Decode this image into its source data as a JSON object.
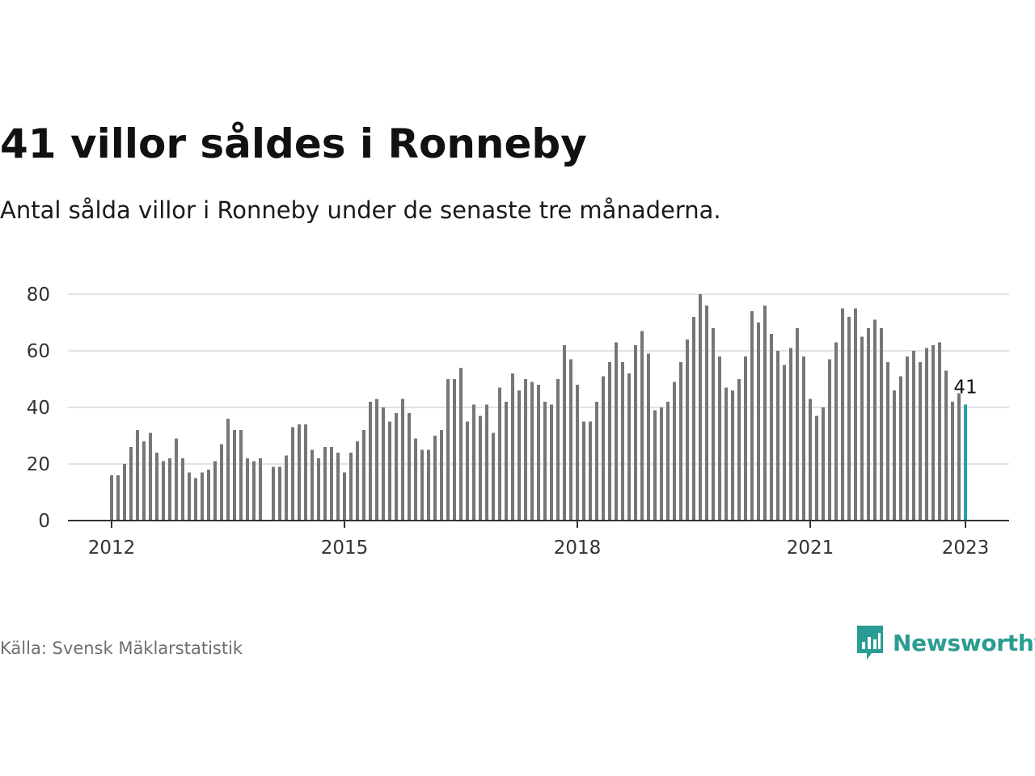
{
  "title": "41 villor såldes i Ronneby",
  "subtitle": "Antal sålda villor i Ronneby under de senaste tre månaderna.",
  "source": "Källa: Svensk Mäklarstatistik",
  "brand": {
    "name": "Newsworthy",
    "color": "#2a9c93",
    "icon": "newsworthy-logo-icon"
  },
  "chart_data": {
    "type": "bar",
    "title": "",
    "xlabel": "",
    "ylabel": "",
    "ylim": [
      0,
      80
    ],
    "yticks": [
      0,
      20,
      40,
      60,
      80
    ],
    "xticks": [
      {
        "year": 2012,
        "label": "2012"
      },
      {
        "year": 2015,
        "label": "2015"
      },
      {
        "year": 2018,
        "label": "2018"
      },
      {
        "year": 2021,
        "label": "2021"
      },
      {
        "year": 2023,
        "label": "2023"
      }
    ],
    "grid": true,
    "bar_color": "#767676",
    "highlight_color": "#22a39f",
    "highlight_label": "41",
    "start": "2012-01",
    "categories": [
      "2012-01",
      "2012-02",
      "2012-03",
      "2012-04",
      "2012-05",
      "2012-06",
      "2012-07",
      "2012-08",
      "2012-09",
      "2012-10",
      "2012-11",
      "2012-12",
      "2013-01",
      "2013-02",
      "2013-03",
      "2013-04",
      "2013-05",
      "2013-06",
      "2013-07",
      "2013-08",
      "2013-09",
      "2013-10",
      "2013-11",
      "2013-12",
      "2014-01",
      "2014-02",
      "2014-03",
      "2014-04",
      "2014-05",
      "2014-06",
      "2014-07",
      "2014-08",
      "2014-09",
      "2014-10",
      "2014-11",
      "2014-12",
      "2015-01",
      "2015-02",
      "2015-03",
      "2015-04",
      "2015-05",
      "2015-06",
      "2015-07",
      "2015-08",
      "2015-09",
      "2015-10",
      "2015-11",
      "2015-12",
      "2016-01",
      "2016-02",
      "2016-03",
      "2016-04",
      "2016-05",
      "2016-06",
      "2016-07",
      "2016-08",
      "2016-09",
      "2016-10",
      "2016-11",
      "2016-12",
      "2017-01",
      "2017-02",
      "2017-03",
      "2017-04",
      "2017-05",
      "2017-06",
      "2017-07",
      "2017-08",
      "2017-09",
      "2017-10",
      "2017-11",
      "2017-12",
      "2018-01",
      "2018-02",
      "2018-03",
      "2018-04",
      "2018-05",
      "2018-06",
      "2018-07",
      "2018-08",
      "2018-09",
      "2018-10",
      "2018-11",
      "2018-12",
      "2019-01",
      "2019-02",
      "2019-03",
      "2019-04",
      "2019-05",
      "2019-06",
      "2019-07",
      "2019-08",
      "2019-09",
      "2019-10",
      "2019-11",
      "2019-12",
      "2020-01",
      "2020-02",
      "2020-03",
      "2020-04",
      "2020-05",
      "2020-06",
      "2020-07",
      "2020-08",
      "2020-09",
      "2020-10",
      "2020-11",
      "2020-12",
      "2021-01",
      "2021-02",
      "2021-03",
      "2021-04",
      "2021-05",
      "2021-06",
      "2021-07",
      "2021-08",
      "2021-09",
      "2021-10",
      "2021-11",
      "2021-12",
      "2022-01",
      "2022-02",
      "2022-03",
      "2022-04",
      "2022-05",
      "2022-06",
      "2022-07",
      "2022-08",
      "2022-09",
      "2022-10",
      "2022-11",
      "2022-12",
      "2023-01"
    ],
    "values": [
      16,
      16,
      20,
      26,
      32,
      28,
      31,
      24,
      21,
      22,
      29,
      22,
      17,
      15,
      17,
      18,
      21,
      27,
      36,
      32,
      32,
      22,
      21,
      22,
      null,
      19,
      19,
      23,
      33,
      34,
      34,
      25,
      22,
      26,
      26,
      24,
      17,
      24,
      28,
      32,
      42,
      43,
      40,
      35,
      38,
      43,
      38,
      29,
      25,
      25,
      30,
      32,
      50,
      50,
      54,
      35,
      41,
      37,
      41,
      31,
      47,
      42,
      52,
      46,
      50,
      49,
      48,
      42,
      41,
      50,
      62,
      57,
      48,
      35,
      35,
      42,
      51,
      56,
      63,
      56,
      52,
      62,
      67,
      59,
      39,
      40,
      42,
      49,
      56,
      64,
      72,
      80,
      76,
      68,
      58,
      47,
      46,
      50,
      58,
      74,
      70,
      76,
      66,
      60,
      55,
      61,
      68,
      58,
      43,
      37,
      40,
      57,
      63,
      75,
      72,
      75,
      65,
      68,
      71,
      68,
      56,
      46,
      51,
      58,
      60,
      56,
      61,
      62,
      63,
      53,
      42,
      45,
      41
    ]
  }
}
